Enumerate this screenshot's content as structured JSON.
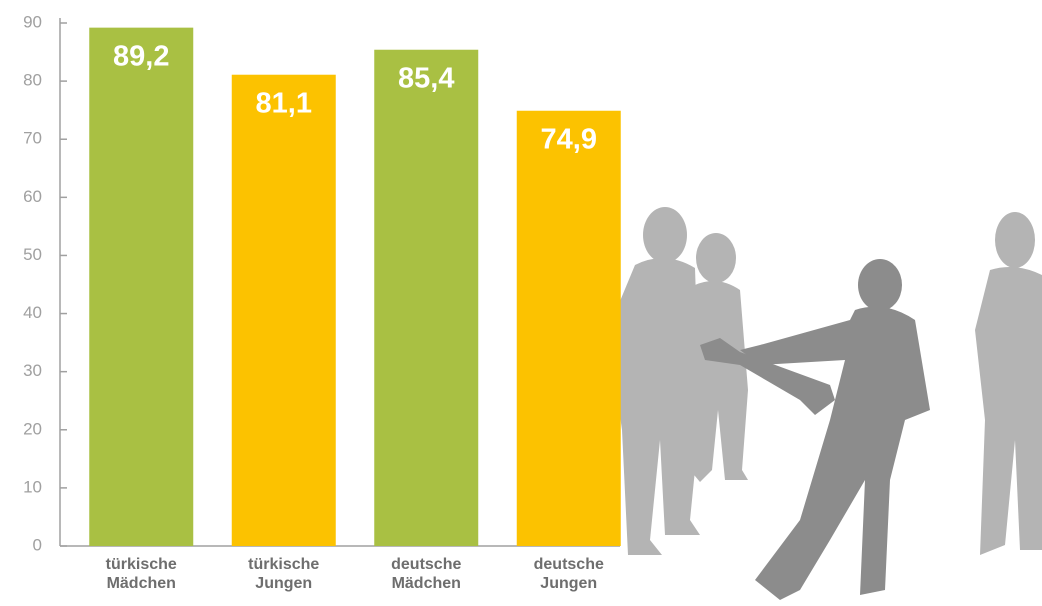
{
  "chart_data": {
    "type": "bar",
    "categories": [
      [
        "türkische",
        "Mädchen"
      ],
      [
        "türkische",
        "Jungen"
      ],
      [
        "deutsche",
        "Mädchen"
      ],
      [
        "deutsche",
        "Jungen"
      ]
    ],
    "values": [
      89.2,
      81.1,
      85.4,
      74.9
    ],
    "value_labels": [
      "89,2",
      "81,1",
      "85,4",
      "74,9"
    ],
    "colors": [
      "#a9c043",
      "#fcc200",
      "#a9c043",
      "#fcc200"
    ],
    "ylim": [
      0,
      90
    ],
    "yticks": [
      0,
      10,
      20,
      30,
      40,
      50,
      60,
      70,
      80,
      90
    ]
  }
}
